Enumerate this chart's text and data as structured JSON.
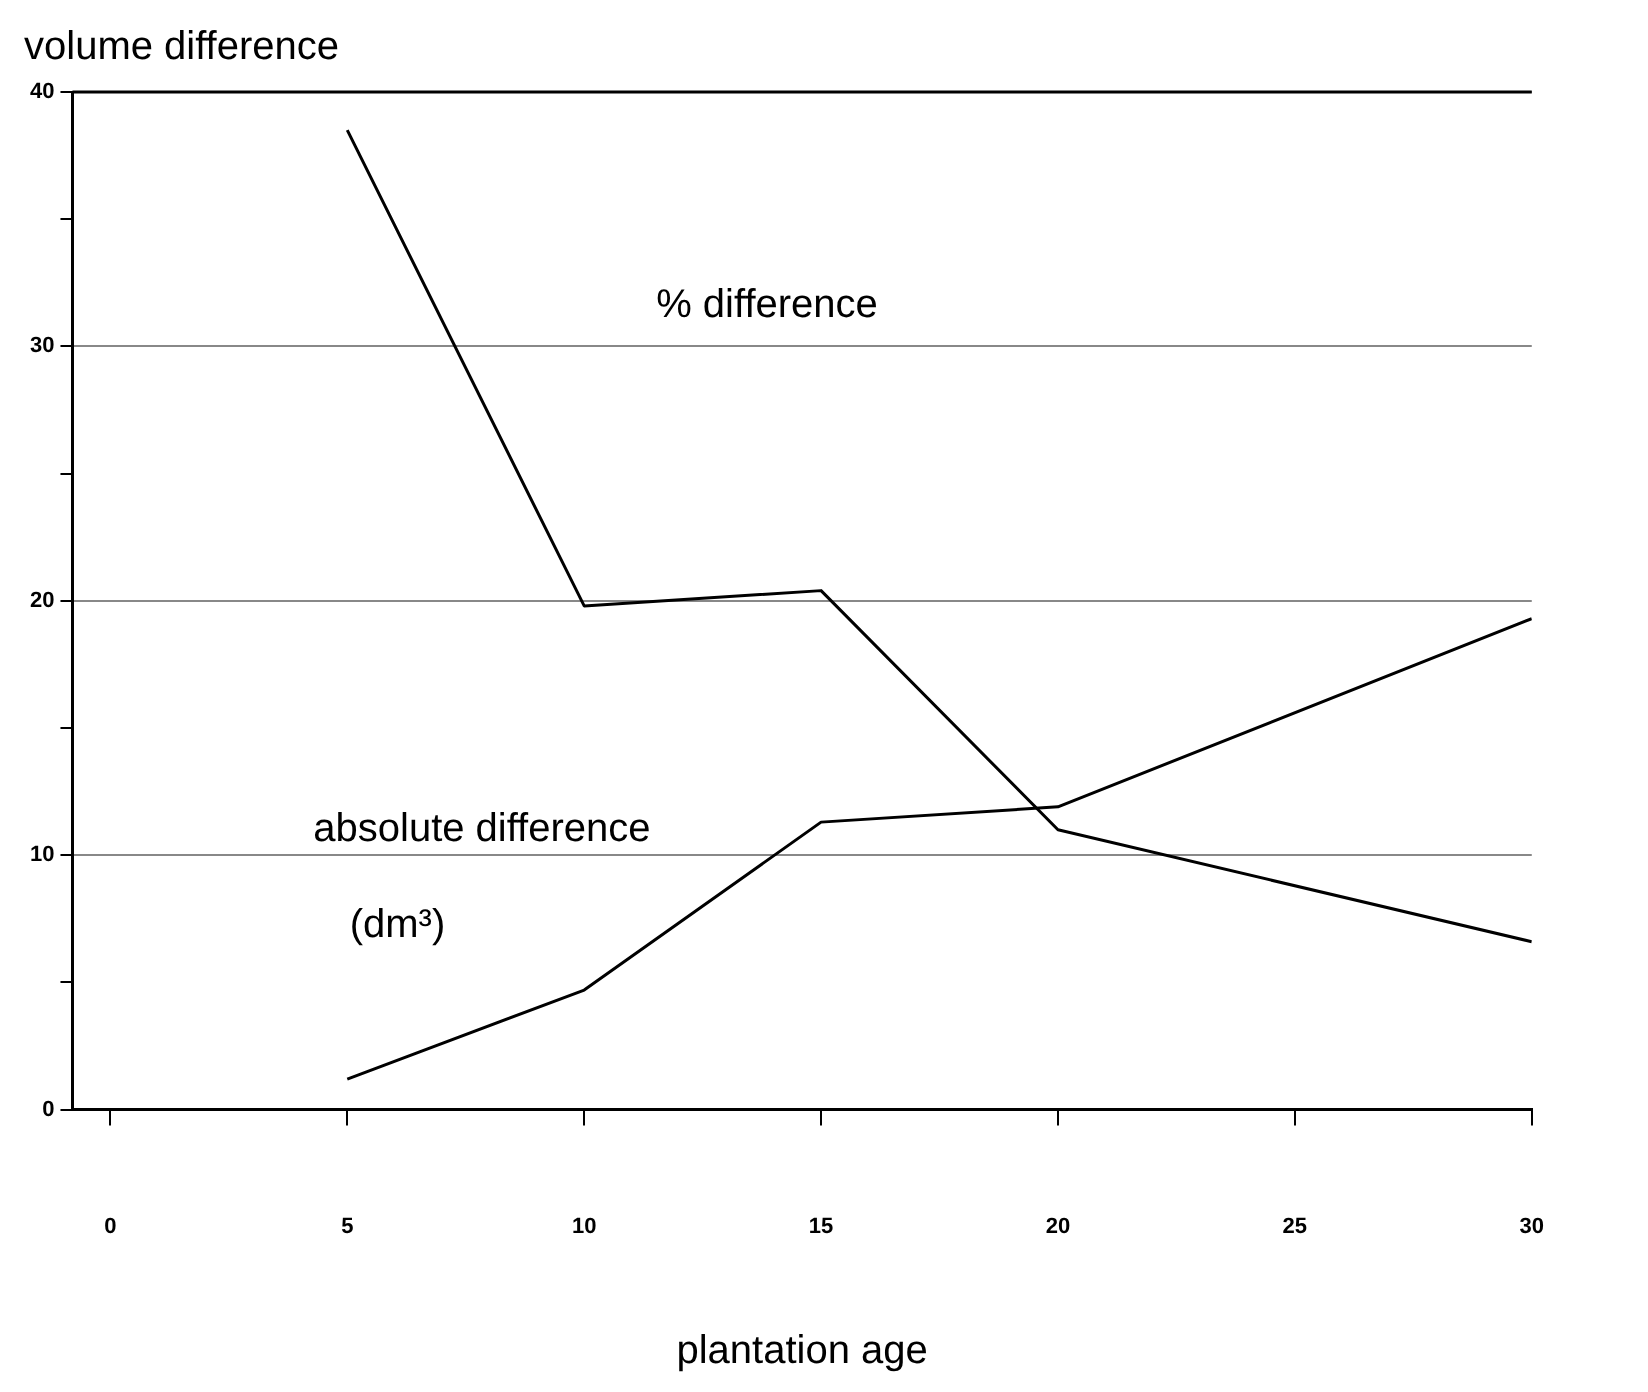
{
  "chart_data": {
    "type": "line",
    "ylabel": "volume difference",
    "xlabel": "plantation age",
    "series": [
      {
        "color": "#000000",
        "x": [
          5,
          10,
          15,
          20,
          30
        ],
        "values": [
          38.5,
          19.8,
          20.4,
          11.0,
          6.6
        ]
      },
      {
        "color": "#000000",
        "x": [
          5,
          10,
          15,
          20,
          30
        ],
        "values": [
          1.2,
          4.7,
          11.3,
          11.9,
          19.3
        ]
      }
    ],
    "annotations": [
      "% difference",
      "absolute difference",
      "(dm³)"
    ],
    "xlim": [
      -0.8,
      30
    ],
    "xticks": [
      0,
      5,
      10,
      15,
      20,
      25,
      30
    ],
    "ylim": [
      0,
      40
    ],
    "yticks": [
      0,
      {
        "value": 5,
        "label": null
      },
      10,
      {
        "value": 15,
        "label": null
      },
      20,
      {
        "value": 25,
        "label": null
      },
      30,
      {
        "value": 35,
        "label": null
      },
      40
    ],
    "grid": "y",
    "legend": false,
    "marker": "none",
    "line_style": "solid"
  }
}
